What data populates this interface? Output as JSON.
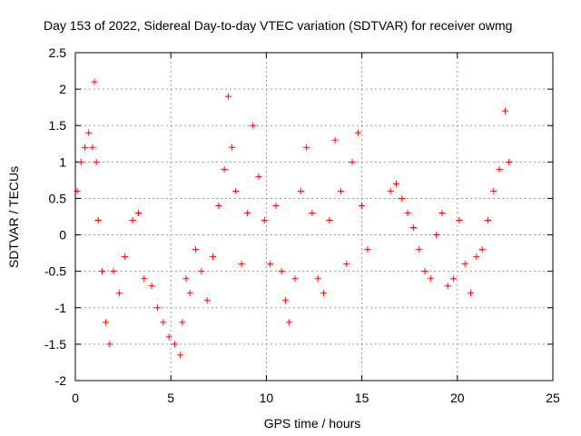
{
  "chart_data": {
    "type": "scatter",
    "title": "Day 153 of 2022, Sidereal Day-to-day VTEC variation (SDTVAR) for receiver owmg",
    "xlabel": "GPS time / hours",
    "ylabel": "SDTVAR / TECUs",
    "xlim": [
      0,
      25
    ],
    "ylim": [
      -2,
      2.5
    ],
    "x_ticks": [
      "0",
      "5",
      "10",
      "15",
      "20",
      "25"
    ],
    "y_ticks": [
      "-2",
      "-1.5",
      "-1",
      "-0.5",
      "0",
      "0.5",
      "1",
      "1.5",
      "2",
      "2.5"
    ],
    "grid": true,
    "marker": "+",
    "color": "#ff0000",
    "series": [
      {
        "name": "SDTVAR",
        "x": [
          0.1,
          0.3,
          0.5,
          0.7,
          0.9,
          1.0,
          1.1,
          1.2,
          1.4,
          1.6,
          1.8,
          2.0,
          2.3,
          2.6,
          3.0,
          3.3,
          3.6,
          4.0,
          4.3,
          4.6,
          4.9,
          5.2,
          5.5,
          5.6,
          5.8,
          6.0,
          6.3,
          6.6,
          6.9,
          7.2,
          7.5,
          7.8,
          8.0,
          8.2,
          8.4,
          8.7,
          9.0,
          9.3,
          9.6,
          9.9,
          10.2,
          10.5,
          10.8,
          11.0,
          11.2,
          11.5,
          11.8,
          12.1,
          12.4,
          12.7,
          13.0,
          13.3,
          13.6,
          13.9,
          14.2,
          14.5,
          14.8,
          15.0,
          15.3,
          16.5,
          16.8,
          17.1,
          17.4,
          17.7,
          18.0,
          18.3,
          18.6,
          18.9,
          19.2,
          19.5,
          19.8,
          20.1,
          20.4,
          20.7,
          21.0,
          21.3,
          21.6,
          21.9,
          22.2,
          22.5,
          22.7
        ],
        "y": [
          0.6,
          1.0,
          1.2,
          1.4,
          1.2,
          2.1,
          1.0,
          0.2,
          -0.5,
          -1.2,
          -1.5,
          -0.5,
          -0.8,
          -0.3,
          0.2,
          0.3,
          -0.6,
          -0.7,
          -1.0,
          -1.2,
          -1.4,
          -1.5,
          -1.65,
          -1.2,
          -0.6,
          -0.8,
          -0.2,
          -0.5,
          -0.9,
          -0.3,
          0.4,
          0.9,
          1.9,
          1.2,
          0.6,
          -0.4,
          0.3,
          1.5,
          0.8,
          0.2,
          -0.4,
          0.4,
          -0.5,
          -0.9,
          -1.2,
          -0.6,
          0.6,
          1.2,
          0.3,
          -0.6,
          -0.8,
          0.2,
          1.3,
          0.6,
          -0.4,
          1.0,
          1.4,
          0.4,
          -0.2,
          0.6,
          0.7,
          0.5,
          0.3,
          0.1,
          -0.2,
          -0.5,
          -0.6,
          0.0,
          0.3,
          -0.7,
          -0.6,
          0.2,
          -0.4,
          -0.8,
          -0.3,
          -0.2,
          0.2,
          0.6,
          0.9,
          1.7,
          1.0
        ]
      }
    ]
  }
}
